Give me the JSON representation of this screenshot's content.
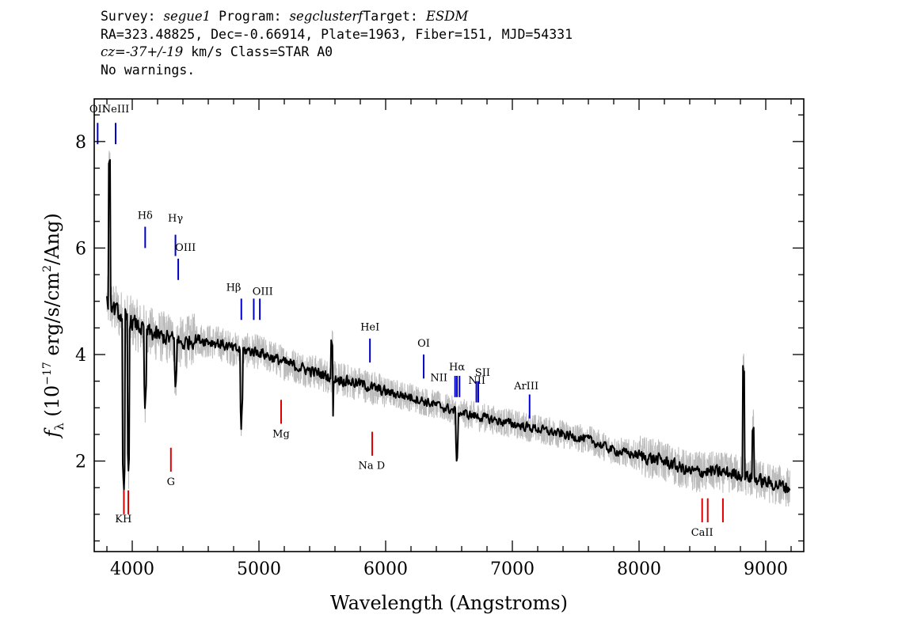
{
  "header": {
    "survey_label": "Survey:",
    "survey": "segue1",
    "program_label": "Program:",
    "program": "segclusterf",
    "target_label": "Target:",
    "target": "ESDM",
    "line2": "RA=323.48825, Dec=-0.66914, Plate=1963, Fiber=151, MJD=54331",
    "cz": "cz=-37+/-19",
    "cz_units": "km/s",
    "class": "Class=STAR A0",
    "warnings": "No warnings."
  },
  "chart_data": {
    "type": "line",
    "xlabel": "Wavelength (Angstroms)",
    "ylabel": "f_λ (10^-17 erg/s/cm^2/Ang)",
    "xlim": [
      3700,
      9300
    ],
    "ylim": [
      0.3,
      8.8
    ],
    "xticks": [
      4000,
      5000,
      6000,
      7000,
      8000,
      9000
    ],
    "yticks": [
      2,
      4,
      6,
      8
    ],
    "colors": {
      "spectrum": "#000000",
      "raw": "#bbbbbb",
      "emission": "#0000cc",
      "absorption": "#dd0000"
    },
    "series": [
      {
        "x": [
          3800,
          3900,
          4000,
          4100,
          4200,
          4300,
          4400,
          4500,
          4600,
          4700,
          4800,
          5000,
          5200,
          5400,
          5600,
          5800,
          6000,
          6200,
          6400,
          6600,
          6800,
          7000,
          7200,
          7400,
          7600,
          7800,
          8000,
          8200,
          8400,
          8600,
          8800,
          9000,
          9190
        ],
        "y": [
          5.0,
          4.75,
          4.6,
          4.45,
          4.35,
          4.3,
          4.2,
          4.3,
          4.25,
          4.2,
          4.1,
          4.05,
          3.85,
          3.7,
          3.55,
          3.45,
          3.3,
          3.2,
          3.05,
          2.9,
          2.8,
          2.7,
          2.6,
          2.5,
          2.4,
          2.2,
          2.1,
          2.0,
          1.8,
          1.8,
          1.75,
          1.6,
          1.5
        ]
      }
    ],
    "absorption_features": [
      {
        "x": 3934,
        "y": 1.3
      },
      {
        "x": 3970,
        "y": 1.8
      },
      {
        "x": 4102,
        "y": 2.9
      },
      {
        "x": 4341,
        "y": 3.3
      },
      {
        "x": 4861,
        "y": 2.6
      },
      {
        "x": 5577,
        "y": 2.3
      },
      {
        "x": 6563,
        "y": 1.9
      }
    ],
    "emission_features": [
      {
        "x": 3820,
        "y": 7.5
      },
      {
        "x": 5577,
        "y": 4.2
      },
      {
        "x": 8827,
        "y": 3.7
      },
      {
        "x": 8900,
        "y": 2.6
      }
    ],
    "emission_lines": [
      {
        "name": "OII",
        "x": 3727,
        "y0": 7.95,
        "y1": 8.35,
        "lx": 3727,
        "ly": 8.55
      },
      {
        "name": "NeIII",
        "x": 3869,
        "y0": 7.95,
        "y1": 8.35,
        "lx": 3869,
        "ly": 8.55
      },
      {
        "name": "Hδ",
        "x": 4102,
        "y0": 6.0,
        "y1": 6.4,
        "lx": 4102,
        "ly": 6.55
      },
      {
        "name": "Hγ",
        "x": 4341,
        "y0": 5.85,
        "y1": 6.25,
        "lx": 4341,
        "ly": 6.5
      },
      {
        "name": "OIII",
        "x": 4363,
        "y0": 5.4,
        "y1": 5.8,
        "lx": 4420,
        "ly": 5.95
      },
      {
        "name": "Hβ",
        "x": 4861,
        "y0": 4.65,
        "y1": 5.05,
        "lx": 4800,
        "ly": 5.2
      },
      {
        "name": "",
        "x": 4959,
        "y0": 4.65,
        "y1": 5.05,
        "lx": 0,
        "ly": 0
      },
      {
        "name": "OIII",
        "x": 5007,
        "y0": 4.65,
        "y1": 5.05,
        "lx": 5030,
        "ly": 5.12
      },
      {
        "name": "HeI",
        "x": 5876,
        "y0": 3.85,
        "y1": 4.3,
        "lx": 5876,
        "ly": 4.45
      },
      {
        "name": "OI",
        "x": 6300,
        "y0": 3.55,
        "y1": 4.0,
        "lx": 6300,
        "ly": 4.15
      },
      {
        "name": "NII",
        "x": 6548,
        "y0": 3.2,
        "y1": 3.6,
        "lx": 6420,
        "ly": 3.5
      },
      {
        "name": "Hα",
        "x": 6563,
        "y0": 3.2,
        "y1": 3.6,
        "lx": 6563,
        "ly": 3.7
      },
      {
        "name": "NII",
        "x": 6583,
        "y0": 3.2,
        "y1": 3.6,
        "lx": 6720,
        "ly": 3.45
      },
      {
        "name": "",
        "x": 6716,
        "y0": 3.1,
        "y1": 3.5,
        "lx": 0,
        "ly": 0
      },
      {
        "name": "SII",
        "x": 6731,
        "y0": 3.1,
        "y1": 3.5,
        "lx": 6765,
        "ly": 3.6
      },
      {
        "name": "ArIII",
        "x": 7136,
        "y0": 2.8,
        "y1": 3.25,
        "lx": 7110,
        "ly": 3.35
      }
    ],
    "absorption_lines": [
      {
        "name": "KH",
        "x": 3934,
        "y0": 1.0,
        "y1": 1.45,
        "lx": 3930,
        "ly": 0.85
      },
      {
        "name": "",
        "x": 3969,
        "y0": 1.0,
        "y1": 1.45,
        "lx": 0,
        "ly": 0
      },
      {
        "name": "G",
        "x": 4305,
        "y0": 1.8,
        "y1": 2.25,
        "lx": 4305,
        "ly": 1.55
      },
      {
        "name": "Mg",
        "x": 5175,
        "y0": 2.7,
        "y1": 3.15,
        "lx": 5175,
        "ly": 2.45
      },
      {
        "name": "Na D",
        "x": 5894,
        "y0": 2.1,
        "y1": 2.55,
        "lx": 5890,
        "ly": 1.85
      },
      {
        "name": "CaII",
        "x": 8498,
        "y0": 0.85,
        "y1": 1.3,
        "lx": 8498,
        "ly": 0.6
      },
      {
        "name": "",
        "x": 8542,
        "y0": 0.85,
        "y1": 1.3,
        "lx": 0,
        "ly": 0
      },
      {
        "name": "",
        "x": 8662,
        "y0": 0.85,
        "y1": 1.3,
        "lx": 0,
        "ly": 0
      }
    ]
  }
}
